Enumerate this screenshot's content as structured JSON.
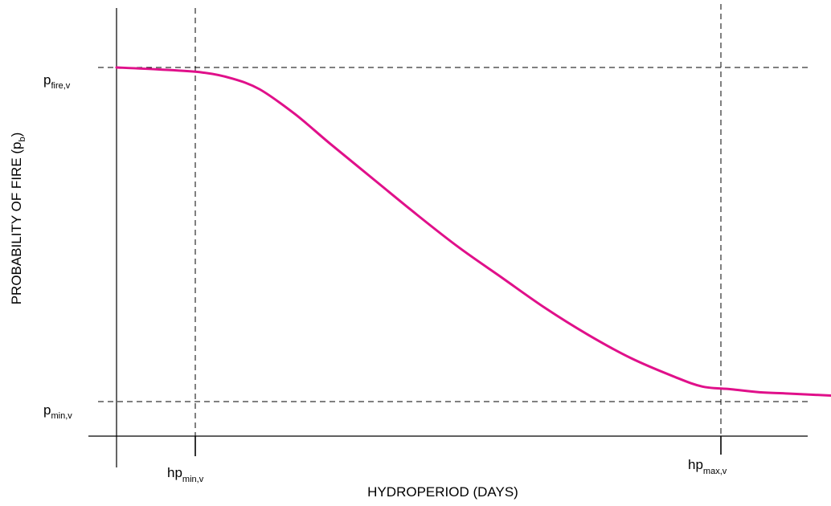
{
  "chart_data": {
    "type": "line",
    "title": "",
    "xlabel": "HYDROPERIOD (DAYS)",
    "ylabel": {
      "text": "PROBABILITY OF FIRE (p",
      "sub": "b",
      "suffix": ")"
    },
    "y_ticks": [
      {
        "base": "p",
        "sub": "fire,v",
        "level": "high"
      },
      {
        "base": "p",
        "sub": "min,v",
        "level": "low"
      }
    ],
    "x_ticks": [
      {
        "base": "hp",
        "sub": "min,v",
        "position": "min"
      },
      {
        "base": "hp",
        "sub": "max,v",
        "position": "max"
      }
    ],
    "series": [
      {
        "color": "#e0108a",
        "x": [
          0,
          0.06,
          0.12,
          0.16,
          0.2,
          0.25,
          0.3,
          0.36,
          0.42,
          0.48,
          0.54,
          0.6,
          0.66,
          0.72,
          0.78,
          0.82,
          0.86,
          0.9,
          0.94,
          1.0
        ],
        "y": [
          1.0,
          0.994,
          0.985,
          0.968,
          0.935,
          0.86,
          0.77,
          0.665,
          0.56,
          0.46,
          0.37,
          0.28,
          0.2,
          0.13,
          0.075,
          0.045,
          0.037,
          0.028,
          0.024,
          0.018
        ]
      }
    ],
    "grid": false,
    "legend": "none"
  }
}
